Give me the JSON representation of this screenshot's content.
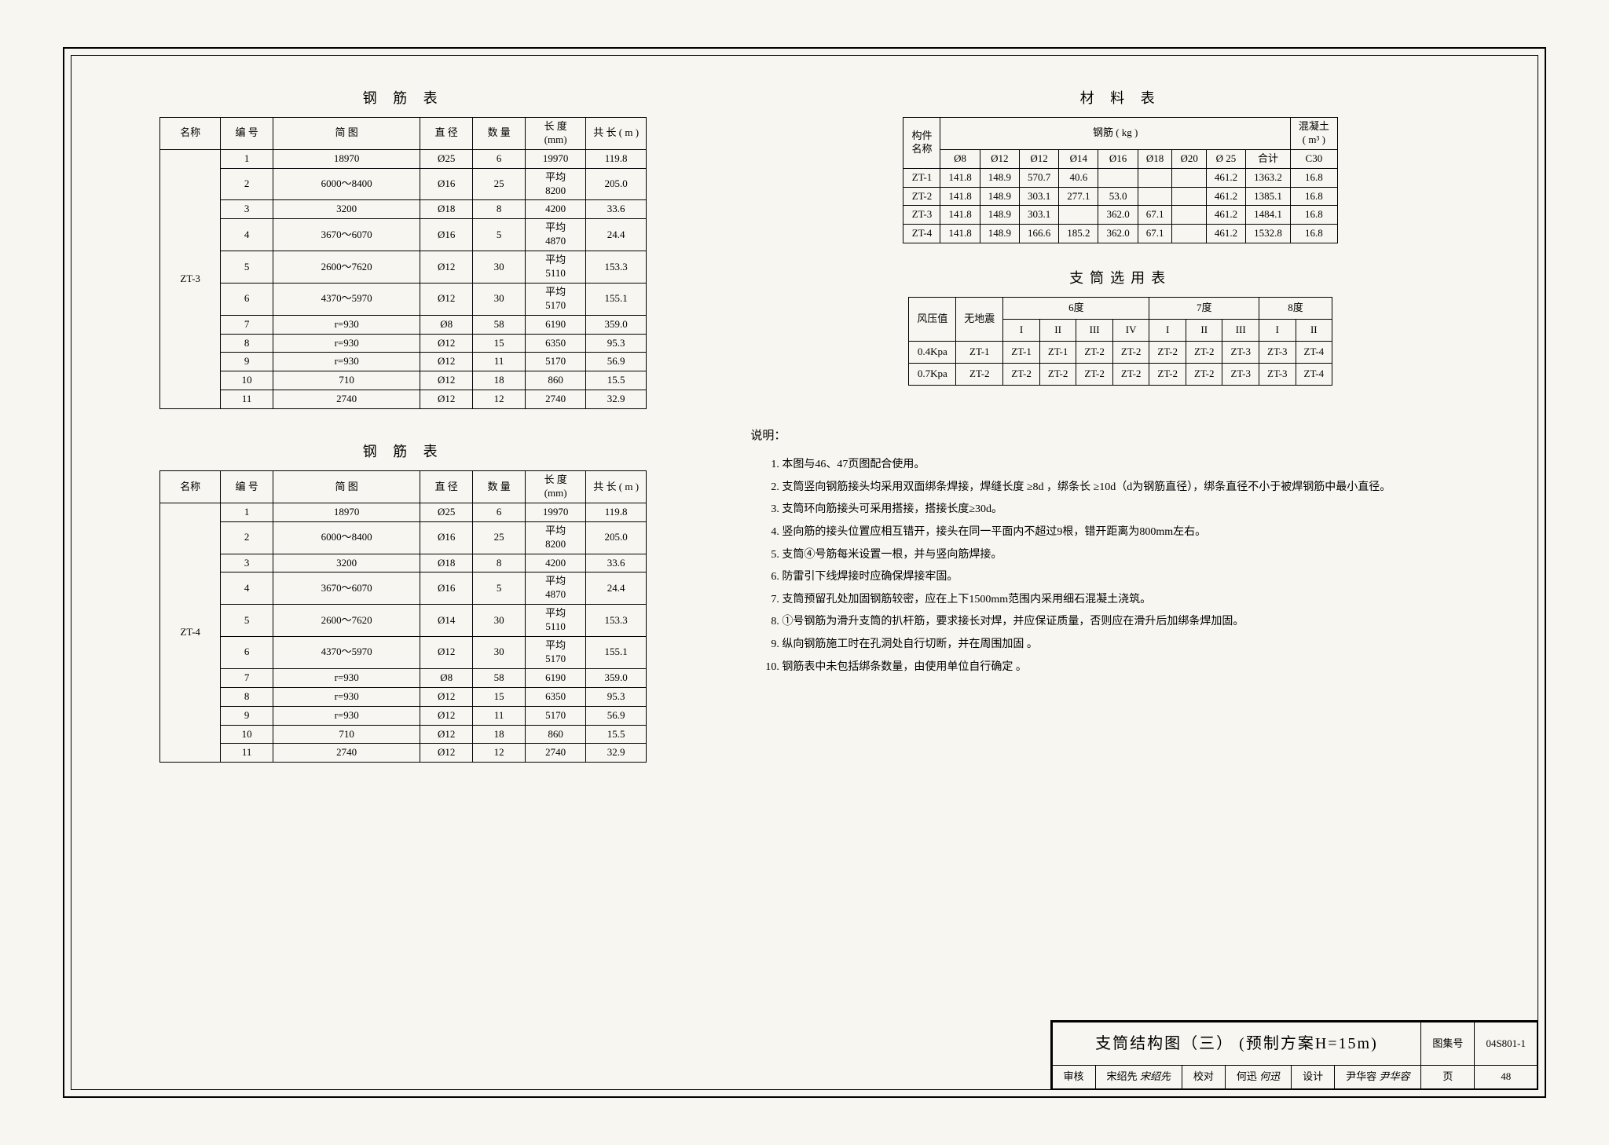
{
  "rebar_title": "钢 筋 表",
  "rebar_headers": {
    "name": "名称",
    "num": "编 号",
    "sketch": "简    图",
    "dia": "直 径",
    "qty": "数 量",
    "len": "长 度\n(mm)",
    "total": "共  长\n( m )"
  },
  "rebar_sections": [
    {
      "name": "ZT-3",
      "rows": [
        {
          "num": "1",
          "sketch": "18970",
          "dia": "Ø25",
          "qty": "6",
          "len": "19970",
          "total": "119.8"
        },
        {
          "num": "2",
          "sketch": "6000～8400",
          "dia": "Ø16",
          "qty": "25",
          "len": "平均\n8200",
          "total": "205.0"
        },
        {
          "num": "3",
          "sketch": "3200",
          "dia": "Ø18",
          "qty": "8",
          "len": "4200",
          "total": "33.6"
        },
        {
          "num": "4",
          "sketch": "3670～6070",
          "dia": "Ø16",
          "qty": "5",
          "len": "平均\n4870",
          "total": "24.4"
        },
        {
          "num": "5",
          "sketch": "2600～7620",
          "dia": "Ø12",
          "qty": "30",
          "len": "平均\n5110",
          "total": "153.3"
        },
        {
          "num": "6",
          "sketch": "4370～5970",
          "dia": "Ø12",
          "qty": "30",
          "len": "平均\n5170",
          "total": "155.1"
        },
        {
          "num": "7",
          "sketch": "r=930",
          "dia": "Ø8",
          "qty": "58",
          "len": "6190",
          "total": "359.0"
        },
        {
          "num": "8",
          "sketch": "r=930",
          "dia": "Ø12",
          "qty": "15",
          "len": "6350",
          "total": "95.3"
        },
        {
          "num": "9",
          "sketch": "r=930",
          "dia": "Ø12",
          "qty": "11",
          "len": "5170",
          "total": "56.9"
        },
        {
          "num": "10",
          "sketch": "710",
          "dia": "Ø12",
          "qty": "18",
          "len": "860",
          "total": "15.5"
        },
        {
          "num": "11",
          "sketch": "2740",
          "dia": "Ø12",
          "qty": "12",
          "len": "2740",
          "total": "32.9"
        }
      ]
    },
    {
      "name": "ZT-4",
      "rows": [
        {
          "num": "1",
          "sketch": "18970",
          "dia": "Ø25",
          "qty": "6",
          "len": "19970",
          "total": "119.8"
        },
        {
          "num": "2",
          "sketch": "6000～8400",
          "dia": "Ø16",
          "qty": "25",
          "len": "平均\n8200",
          "total": "205.0"
        },
        {
          "num": "3",
          "sketch": "3200",
          "dia": "Ø18",
          "qty": "8",
          "len": "4200",
          "total": "33.6"
        },
        {
          "num": "4",
          "sketch": "3670～6070",
          "dia": "Ø16",
          "qty": "5",
          "len": "平均\n4870",
          "total": "24.4"
        },
        {
          "num": "5",
          "sketch": "2600～7620",
          "dia": "Ø14",
          "qty": "30",
          "len": "平均\n5110",
          "total": "153.3"
        },
        {
          "num": "6",
          "sketch": "4370～5970",
          "dia": "Ø12",
          "qty": "30",
          "len": "平均\n5170",
          "total": "155.1"
        },
        {
          "num": "7",
          "sketch": "r=930",
          "dia": "Ø8",
          "qty": "58",
          "len": "6190",
          "total": "359.0"
        },
        {
          "num": "8",
          "sketch": "r=930",
          "dia": "Ø12",
          "qty": "15",
          "len": "6350",
          "total": "95.3"
        },
        {
          "num": "9",
          "sketch": "r=930",
          "dia": "Ø12",
          "qty": "11",
          "len": "5170",
          "total": "56.9"
        },
        {
          "num": "10",
          "sketch": "710",
          "dia": "Ø12",
          "qty": "18",
          "len": "860",
          "total": "15.5"
        },
        {
          "num": "11",
          "sketch": "2740",
          "dia": "Ø12",
          "qty": "12",
          "len": "2740",
          "total": "32.9"
        }
      ]
    }
  ],
  "material_title": "材 料 表",
  "material_headers": {
    "member": "构件\n名称",
    "rebar_group": "钢筋  ( kg )",
    "concrete": "混凝土\n( m³ )",
    "d8": "Ø8",
    "d12": "Ø12",
    "d12b": "Ø12",
    "d14": "Ø14",
    "d16": "Ø16",
    "d18": "Ø18",
    "d20": "Ø20",
    "d25": "Ø 25",
    "sum": "合计",
    "c30": "C30"
  },
  "material_rows": [
    {
      "name": "ZT-1",
      "d8": "141.8",
      "d12": "148.9",
      "d12b": "570.7",
      "d14": "40.6",
      "d16": "",
      "d18": "",
      "d20": "",
      "d25": "461.2",
      "sum": "1363.2",
      "c30": "16.8"
    },
    {
      "name": "ZT-2",
      "d8": "141.8",
      "d12": "148.9",
      "d12b": "303.1",
      "d14": "277.1",
      "d16": "53.0",
      "d18": "",
      "d20": "",
      "d25": "461.2",
      "sum": "1385.1",
      "c30": "16.8"
    },
    {
      "name": "ZT-3",
      "d8": "141.8",
      "d12": "148.9",
      "d12b": "303.1",
      "d14": "",
      "d16": "362.0",
      "d18": "67.1",
      "d20": "",
      "d25": "461.2",
      "sum": "1484.1",
      "c30": "16.8"
    },
    {
      "name": "ZT-4",
      "d8": "141.8",
      "d12": "148.9",
      "d12b": "166.6",
      "d14": "185.2",
      "d16": "362.0",
      "d18": "67.1",
      "d20": "",
      "d25": "461.2",
      "sum": "1532.8",
      "c30": "16.8"
    }
  ],
  "selection_title": "支筒选用表",
  "selection_headers": {
    "wind": "风压值",
    "noquake": "无地震",
    "d6": "6度",
    "d7": "7度",
    "d8": "8度",
    "roman": [
      "I",
      "II",
      "III",
      "IV",
      "I",
      "II",
      "III",
      "I",
      "II"
    ]
  },
  "selection_rows": [
    {
      "wind": "0.4Kpa",
      "nq": "ZT-1",
      "cells": [
        "ZT-1",
        "ZT-1",
        "ZT-2",
        "ZT-2",
        "ZT-2",
        "ZT-2",
        "ZT-3",
        "ZT-3",
        "ZT-4"
      ]
    },
    {
      "wind": "0.7Kpa",
      "nq": "ZT-2",
      "cells": [
        "ZT-2",
        "ZT-2",
        "ZT-2",
        "ZT-2",
        "ZT-2",
        "ZT-2",
        "ZT-3",
        "ZT-3",
        "ZT-4"
      ]
    }
  ],
  "notes_title": "说明：",
  "notes": [
    "本图与46、47页图配合使用。",
    "支筒竖向钢筋接头均采用双面绑条焊接，焊缝长度 ≥8d ，绑条长 ≥10d（d为钢筋直径），绑条直径不小于被焊钢筋中最小直径。",
    "支筒环向筋接头可采用搭接，搭接长度≥30d。",
    "竖向筋的接头位置应相互错开，接头在同一平面内不超过9根，错开距离为800mm左右。",
    "支筒④号筋每米设置一根，并与竖向筋焊接。",
    "防雷引下线焊接时应确保焊接牢固。",
    "支筒预留孔处加固钢筋较密，应在上下1500mm范围内采用细石混凝土浇筑。",
    "①号钢筋为滑升支筒的扒杆筋，要求接长对焊，并应保证质量，否则应在滑升后加绑条焊加固。",
    "纵向钢筋施工时在孔洞处自行切断，并在周围加固 。",
    "钢筋表中未包括绑条数量，由使用单位自行确定 。"
  ],
  "titleblock": {
    "main": "支筒结构图（三）   (预制方案H=15m)",
    "setno_label": "图集号",
    "setno": "04S801-1",
    "review_label": "审核",
    "review_name": "宋绍先",
    "review_sig": "宋绍先",
    "check_label": "校对",
    "check_name": "何迅",
    "check_sig": "何迅",
    "design_label": "设计",
    "design_name": "尹华容",
    "design_sig": "尹华容",
    "page_label": "页",
    "page": "48"
  }
}
